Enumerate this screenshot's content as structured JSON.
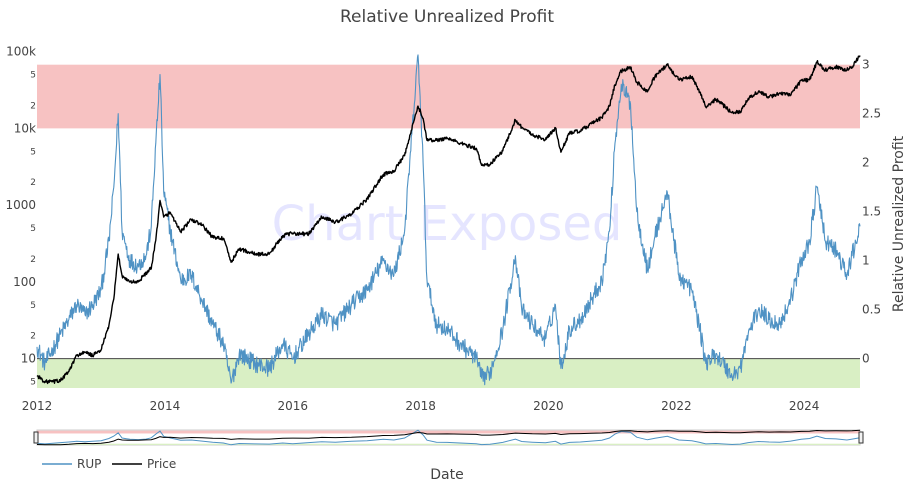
{
  "chart_data": {
    "type": "line",
    "title": "Relative Unrealized Profit",
    "xlabel": "Date",
    "ylabel_left": "",
    "ylabel_right": "Relative Unrealized Profit",
    "watermark": "Chart Exposed",
    "x_range": [
      "2012-01-01",
      "2024-11-15"
    ],
    "x_ticks": [
      "2012",
      "2014",
      "2016",
      "2018",
      "2020",
      "2022",
      "2024"
    ],
    "y_left": {
      "scale": "log",
      "range": [
        4,
        100000
      ],
      "major_ticks": [
        {
          "value": 10,
          "label": "10"
        },
        {
          "value": 100,
          "label": "100"
        },
        {
          "value": 1000,
          "label": "1000"
        },
        {
          "value": 10000,
          "label": "10k"
        },
        {
          "value": 100000,
          "label": "100k"
        }
      ],
      "minor_ticks": [
        {
          "value": 5,
          "label": "5"
        },
        {
          "value": 20,
          "label": "2"
        },
        {
          "value": 50,
          "label": "5"
        },
        {
          "value": 200,
          "label": "2"
        },
        {
          "value": 500,
          "label": "5"
        },
        {
          "value": 2000,
          "label": "2"
        },
        {
          "value": 5000,
          "label": "5"
        },
        {
          "value": 20000,
          "label": "2"
        },
        {
          "value": 50000,
          "label": "5"
        }
      ]
    },
    "y_right": {
      "scale": "linear",
      "range": [
        -0.3,
        3.15
      ],
      "ticks": [
        {
          "value": 0,
          "label": "0"
        },
        {
          "value": 0.5,
          "label": "0.5"
        },
        {
          "value": 1,
          "label": "1"
        },
        {
          "value": 1.5,
          "label": "1.5"
        },
        {
          "value": 2,
          "label": "2"
        },
        {
          "value": 2.5,
          "label": "2.5"
        },
        {
          "value": 3,
          "label": "3"
        }
      ]
    },
    "bands": [
      {
        "name": "high",
        "y_from": 2.35,
        "y_to": 3.0,
        "color": "#f7c2c2"
      },
      {
        "name": "low",
        "y_from": -0.3,
        "y_to": 0.0,
        "color": "#d9efc4"
      }
    ],
    "series": [
      {
        "name": "RUP",
        "axis": "right",
        "color": "#4f92c4",
        "points": [
          [
            "2012-01-01",
            0.12
          ],
          [
            "2012-02-15",
            -0.05
          ],
          [
            "2012-04-01",
            0.1
          ],
          [
            "2012-05-15",
            0.25
          ],
          [
            "2012-07-01",
            0.4
          ],
          [
            "2012-08-15",
            0.55
          ],
          [
            "2012-10-01",
            0.45
          ],
          [
            "2012-11-15",
            0.55
          ],
          [
            "2013-01-01",
            0.7
          ],
          [
            "2013-02-15",
            1.2
          ],
          [
            "2013-03-15",
            1.75
          ],
          [
            "2013-04-09",
            2.5
          ],
          [
            "2013-05-01",
            1.3
          ],
          [
            "2013-06-15",
            1.0
          ],
          [
            "2013-08-01",
            0.95
          ],
          [
            "2013-09-15",
            1.05
          ],
          [
            "2013-10-15",
            1.35
          ],
          [
            "2013-11-10",
            2.2
          ],
          [
            "2013-12-04",
            2.9
          ],
          [
            "2013-12-25",
            1.7
          ],
          [
            "2014-02-01",
            1.3
          ],
          [
            "2014-04-01",
            0.8
          ],
          [
            "2014-06-01",
            0.85
          ],
          [
            "2014-08-01",
            0.6
          ],
          [
            "2014-10-01",
            0.35
          ],
          [
            "2014-12-01",
            0.15
          ],
          [
            "2015-01-14",
            -0.25
          ],
          [
            "2015-03-01",
            0.05
          ],
          [
            "2015-06-01",
            -0.05
          ],
          [
            "2015-08-20",
            -0.1
          ],
          [
            "2015-11-05",
            0.15
          ],
          [
            "2016-01-01",
            0.0
          ],
          [
            "2016-04-01",
            0.25
          ],
          [
            "2016-06-15",
            0.45
          ],
          [
            "2016-09-01",
            0.35
          ],
          [
            "2016-12-01",
            0.55
          ],
          [
            "2017-03-01",
            0.7
          ],
          [
            "2017-06-01",
            1.0
          ],
          [
            "2017-08-01",
            0.85
          ],
          [
            "2017-10-01",
            1.3
          ],
          [
            "2017-12-17",
            3.1
          ],
          [
            "2018-01-15",
            2.0
          ],
          [
            "2018-02-06",
            0.8
          ],
          [
            "2018-04-01",
            0.35
          ],
          [
            "2018-06-01",
            0.3
          ],
          [
            "2018-08-15",
            0.15
          ],
          [
            "2018-11-15",
            0.0
          ],
          [
            "2018-12-15",
            -0.2
          ],
          [
            "2019-02-01",
            -0.15
          ],
          [
            "2019-04-15",
            0.3
          ],
          [
            "2019-06-26",
            1.05
          ],
          [
            "2019-08-01",
            0.5
          ],
          [
            "2019-10-01",
            0.35
          ],
          [
            "2019-12-15",
            0.2
          ],
          [
            "2020-02-10",
            0.55
          ],
          [
            "2020-03-12",
            -0.1
          ],
          [
            "2020-05-01",
            0.3
          ],
          [
            "2020-07-01",
            0.4
          ],
          [
            "2020-09-01",
            0.6
          ],
          [
            "2020-11-01",
            0.8
          ],
          [
            "2020-12-15",
            1.3
          ],
          [
            "2021-01-15",
            2.2
          ],
          [
            "2021-02-20",
            2.8
          ],
          [
            "2021-04-14",
            2.6
          ],
          [
            "2021-05-20",
            1.5
          ],
          [
            "2021-07-20",
            0.9
          ],
          [
            "2021-09-01",
            1.25
          ],
          [
            "2021-11-10",
            1.7
          ],
          [
            "2022-01-15",
            0.85
          ],
          [
            "2022-03-30",
            0.7
          ],
          [
            "2022-05-15",
            0.3
          ],
          [
            "2022-06-18",
            -0.05
          ],
          [
            "2022-08-15",
            0.05
          ],
          [
            "2022-11-15",
            -0.18
          ],
          [
            "2023-01-01",
            -0.1
          ],
          [
            "2023-02-15",
            0.25
          ],
          [
            "2023-04-15",
            0.5
          ],
          [
            "2023-06-15",
            0.4
          ],
          [
            "2023-08-15",
            0.35
          ],
          [
            "2023-10-15",
            0.6
          ],
          [
            "2023-12-15",
            1.0
          ],
          [
            "2024-02-01",
            1.2
          ],
          [
            "2024-03-14",
            1.75
          ],
          [
            "2024-05-01",
            1.2
          ],
          [
            "2024-07-01",
            1.1
          ],
          [
            "2024-09-01",
            0.85
          ],
          [
            "2024-10-01",
            1.05
          ],
          [
            "2024-11-15",
            1.35
          ]
        ]
      },
      {
        "name": "Price",
        "axis": "left",
        "color": "#000000",
        "points": [
          [
            "2012-01-01",
            6
          ],
          [
            "2012-02-15",
            5
          ],
          [
            "2012-04-01",
            5
          ],
          [
            "2012-05-15",
            5.2
          ],
          [
            "2012-07-01",
            6.8
          ],
          [
            "2012-08-15",
            11
          ],
          [
            "2012-10-01",
            12
          ],
          [
            "2012-11-15",
            11
          ],
          [
            "2013-01-01",
            13
          ],
          [
            "2013-02-15",
            27
          ],
          [
            "2013-03-15",
            60
          ],
          [
            "2013-04-09",
            230
          ],
          [
            "2013-05-01",
            120
          ],
          [
            "2013-06-15",
            100
          ],
          [
            "2013-08-01",
            100
          ],
          [
            "2013-09-15",
            130
          ],
          [
            "2013-10-15",
            150
          ],
          [
            "2013-11-10",
            350
          ],
          [
            "2013-12-04",
            1150
          ],
          [
            "2013-12-25",
            700
          ],
          [
            "2014-02-01",
            800
          ],
          [
            "2014-04-01",
            450
          ],
          [
            "2014-06-01",
            650
          ],
          [
            "2014-08-01",
            550
          ],
          [
            "2014-10-01",
            380
          ],
          [
            "2014-12-01",
            370
          ],
          [
            "2015-01-14",
            180
          ],
          [
            "2015-03-01",
            270
          ],
          [
            "2015-06-01",
            230
          ],
          [
            "2015-08-20",
            230
          ],
          [
            "2015-11-05",
            400
          ],
          [
            "2016-01-01",
            430
          ],
          [
            "2016-04-01",
            420
          ],
          [
            "2016-06-15",
            700
          ],
          [
            "2016-09-01",
            600
          ],
          [
            "2016-12-01",
            760
          ],
          [
            "2017-03-01",
            1200
          ],
          [
            "2017-06-01",
            2500
          ],
          [
            "2017-08-01",
            2800
          ],
          [
            "2017-10-01",
            4400
          ],
          [
            "2017-12-17",
            19500
          ],
          [
            "2018-01-15",
            13500
          ],
          [
            "2018-02-06",
            7000
          ],
          [
            "2018-04-01",
            7000
          ],
          [
            "2018-06-01",
            7500
          ],
          [
            "2018-08-15",
            6400
          ],
          [
            "2018-11-15",
            5500
          ],
          [
            "2018-12-15",
            3300
          ],
          [
            "2019-02-01",
            3400
          ],
          [
            "2019-04-15",
            5100
          ],
          [
            "2019-06-26",
            12900
          ],
          [
            "2019-08-01",
            10400
          ],
          [
            "2019-10-01",
            8300
          ],
          [
            "2019-12-15",
            7100
          ],
          [
            "2020-02-10",
            10200
          ],
          [
            "2020-03-12",
            4900
          ],
          [
            "2020-05-01",
            8800
          ],
          [
            "2020-07-01",
            9200
          ],
          [
            "2020-09-01",
            11500
          ],
          [
            "2020-11-01",
            13800
          ],
          [
            "2020-12-15",
            19500
          ],
          [
            "2021-01-15",
            37000
          ],
          [
            "2021-02-20",
            56000
          ],
          [
            "2021-04-14",
            63000
          ],
          [
            "2021-05-20",
            40000
          ],
          [
            "2021-07-20",
            30000
          ],
          [
            "2021-09-01",
            48000
          ],
          [
            "2021-11-10",
            67000
          ],
          [
            "2022-01-15",
            43000
          ],
          [
            "2022-03-30",
            47000
          ],
          [
            "2022-05-15",
            30000
          ],
          [
            "2022-06-18",
            19000
          ],
          [
            "2022-08-15",
            24000
          ],
          [
            "2022-11-15",
            16000
          ],
          [
            "2023-01-01",
            16600
          ],
          [
            "2023-02-15",
            24500
          ],
          [
            "2023-04-15",
            30300
          ],
          [
            "2023-06-15",
            25500
          ],
          [
            "2023-08-15",
            29000
          ],
          [
            "2023-10-15",
            27000
          ],
          [
            "2023-12-15",
            42000
          ],
          [
            "2024-02-01",
            43000
          ],
          [
            "2024-03-14",
            73000
          ],
          [
            "2024-05-01",
            58000
          ],
          [
            "2024-07-01",
            63000
          ],
          [
            "2024-09-01",
            58000
          ],
          [
            "2024-10-01",
            63000
          ],
          [
            "2024-11-15",
            89000
          ]
        ]
      }
    ],
    "legend": {
      "placement": "bottom-left",
      "entries": [
        "RUP",
        "Price"
      ]
    },
    "grid": false,
    "range_slider": true
  }
}
